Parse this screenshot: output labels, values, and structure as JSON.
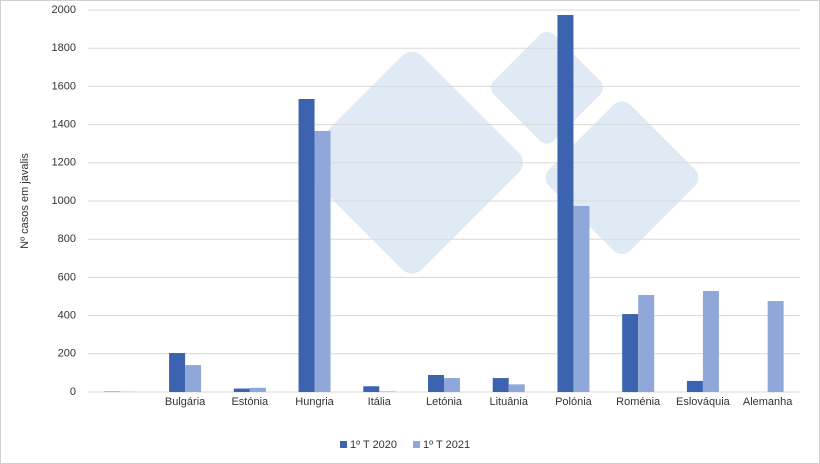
{
  "chart_data": {
    "type": "bar",
    "y_label": "Nº casos em javalis",
    "categories": [
      null,
      "Bulgária",
      "Estónia",
      "Hungria",
      "Itália",
      "Letónia",
      "Lituânia",
      "Polónia",
      "Roménia",
      "Eslováquia",
      "Alemanha"
    ],
    "series": [
      {
        "name": "1º T 2020",
        "color": "#3b63b0",
        "values": [
          2,
          204,
          18,
          1534,
          30,
          89,
          73,
          1974,
          408,
          58,
          0
        ]
      },
      {
        "name": "1º T 2021",
        "color": "#8fa7d9",
        "values": [
          1,
          141,
          22,
          1367,
          3,
          73,
          40,
          974,
          508,
          529,
          476
        ]
      }
    ],
    "ylim": [
      0,
      2000
    ],
    "yticks": [
      0,
      200,
      400,
      600,
      800,
      1000,
      1200,
      1400,
      1600,
      1800,
      2000
    ],
    "grid": true,
    "legend": "bottom"
  }
}
